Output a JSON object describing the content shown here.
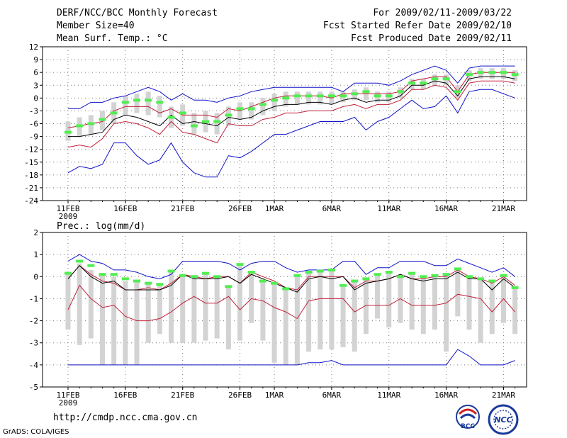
{
  "header": {
    "title": "DERF/NCC/BCC Monthly Forecast",
    "member_size": "Member Size=40",
    "variable": "Mean Surf. Temp.: °C",
    "period": "For 2009/02/11-2009/03/22",
    "started": "Fcst Started Refer Date 2009/02/10",
    "produced": "Fcst Produced Date 2009/02/11"
  },
  "footer": {
    "url": "http://cmdp.ncc.cma.gov.cn",
    "grads": "GrADS: COLA/IGES",
    "logo_left_text": "BCC",
    "logo_right_text": "NCC"
  },
  "colors": {
    "box": "#d3d3d3",
    "median": "#50ee50",
    "mean": "#000000",
    "inner_band": "#c0203a",
    "outer_band": "#1010c8",
    "grid": "#777777"
  },
  "chart_data": [
    {
      "type": "box-line",
      "title": "Mean Surf. Temp.: °C",
      "ylabel": "°C",
      "ylim": [
        -24,
        12
      ],
      "yticks": [
        12,
        9,
        6,
        3,
        0,
        -3,
        -6,
        -9,
        -12,
        -15,
        -18,
        -21,
        -24
      ],
      "xlabels": [
        {
          "day": 0,
          "label": "11FEB",
          "sub": "2009"
        },
        {
          "day": 5,
          "label": "16FEB"
        },
        {
          "day": 10,
          "label": "21FEB"
        },
        {
          "day": 15,
          "label": "26FEB"
        },
        {
          "day": 18,
          "label": "1MAR"
        },
        {
          "day": 23,
          "label": "6MAR"
        },
        {
          "day": 28,
          "label": "11MAR"
        },
        {
          "day": 33,
          "label": "16MAR"
        },
        {
          "day": 38,
          "label": "21MAR"
        }
      ],
      "series": [
        {
          "name": "ensemble max",
          "values": [
            -2.5,
            -2.5,
            -1.0,
            -1.0,
            0.0,
            0.5,
            1.5,
            2.5,
            1.5,
            -0.5,
            1.0,
            -0.5,
            -0.5,
            -1.0,
            0.0,
            0.5,
            1.5,
            2.0,
            2.5,
            2.5,
            2.5,
            2.5,
            2.5,
            2.5,
            1.5,
            3.5,
            3.5,
            3.5,
            3.0,
            4.0,
            5.5,
            6.5,
            7.5,
            6.5,
            3.5,
            7.0,
            7.5,
            7.5,
            7.5,
            7.5
          ]
        },
        {
          "name": "upper band",
          "values": [
            -7.0,
            -6.5,
            -6.0,
            -5.5,
            -3.0,
            -2.0,
            -2.0,
            -2.0,
            -3.5,
            -2.5,
            -4.0,
            -4.0,
            -4.0,
            -4.5,
            -2.5,
            -3.0,
            -2.0,
            -1.0,
            0.0,
            0.5,
            0.5,
            0.5,
            0.5,
            0.0,
            1.0,
            1.0,
            1.0,
            1.0,
            1.0,
            1.5,
            4.0,
            4.5,
            5.0,
            5.0,
            1.5,
            5.5,
            6.0,
            6.0,
            6.0,
            6.0
          ]
        },
        {
          "name": "ensemble mean",
          "values": [
            -9.0,
            -9.0,
            -8.5,
            -8.0,
            -5.0,
            -4.0,
            -4.5,
            -5.5,
            -6.5,
            -4.0,
            -6.0,
            -5.5,
            -6.0,
            -6.5,
            -4.5,
            -5.0,
            -4.5,
            -3.0,
            -2.0,
            -1.5,
            -1.5,
            -1.0,
            -1.0,
            -1.5,
            -0.5,
            0.0,
            -1.0,
            -0.5,
            -0.5,
            0.5,
            3.0,
            3.0,
            4.0,
            3.5,
            0.5,
            4.5,
            5.0,
            5.0,
            5.0,
            4.5
          ]
        },
        {
          "name": "lower band",
          "values": [
            -11.5,
            -11.0,
            -11.5,
            -9.5,
            -6.0,
            -5.5,
            -6.0,
            -7.0,
            -8.5,
            -5.5,
            -8.0,
            -8.5,
            -9.5,
            -10.5,
            -6.0,
            -6.5,
            -6.5,
            -5.0,
            -4.5,
            -3.5,
            -3.5,
            -3.0,
            -3.0,
            -3.0,
            -2.0,
            -1.5,
            -2.5,
            -1.5,
            -1.5,
            -0.5,
            2.0,
            2.0,
            3.0,
            2.5,
            -0.5,
            3.5,
            4.0,
            4.0,
            4.0,
            3.5
          ]
        },
        {
          "name": "ensemble min",
          "values": [
            -17.5,
            -16.0,
            -16.5,
            -15.5,
            -10.5,
            -10.5,
            -13.5,
            -15.5,
            -14.5,
            -10.5,
            -15.0,
            -17.5,
            -18.5,
            -18.5,
            -13.5,
            -14.0,
            -12.5,
            -10.5,
            -8.5,
            -8.5,
            -7.5,
            -6.5,
            -5.5,
            -5.5,
            -5.5,
            -4.5,
            -7.5,
            -5.5,
            -4.5,
            -2.5,
            -0.5,
            -2.5,
            -2.0,
            0.5,
            -3.5,
            1.5,
            2.0,
            2.0,
            1.0,
            0.0
          ]
        },
        {
          "name": "median",
          "values": [
            -8.0,
            -6.5,
            -6.0,
            -5.0,
            -3.5,
            -1.0,
            -0.5,
            -0.5,
            -1.0,
            -4.5,
            -3.5,
            -6.5,
            -5.5,
            -5.5,
            -4.0,
            -2.5,
            -2.5,
            -1.5,
            -0.5,
            0.0,
            0.5,
            0.5,
            0.5,
            0.5,
            0.5,
            1.0,
            1.5,
            0.5,
            0.5,
            1.5,
            3.5,
            3.5,
            4.5,
            4.5,
            1.5,
            5.5,
            6.0,
            6.0,
            6.0,
            5.5
          ]
        },
        {
          "name": "box top",
          "values": [
            -5.5,
            -4.5,
            -4.0,
            -3.0,
            -1.0,
            0.5,
            1.0,
            1.5,
            0.5,
            -2.0,
            -1.5,
            -3.5,
            -3.0,
            -3.5,
            -2.0,
            -1.0,
            -1.0,
            0.0,
            1.0,
            1.5,
            1.5,
            1.5,
            1.5,
            1.5,
            1.5,
            2.0,
            2.5,
            1.5,
            1.5,
            2.5,
            4.5,
            4.5,
            5.5,
            5.5,
            3.0,
            6.5,
            7.0,
            7.0,
            7.0,
            6.5
          ]
        },
        {
          "name": "box bottom",
          "values": [
            -10.0,
            -9.0,
            -8.5,
            -7.5,
            -6.0,
            -4.0,
            -3.5,
            -4.0,
            -4.5,
            -7.0,
            -6.5,
            -8.5,
            -8.0,
            -8.5,
            -6.5,
            -5.0,
            -5.0,
            -4.0,
            -3.0,
            -2.0,
            -1.5,
            -1.5,
            -1.5,
            -1.5,
            -1.0,
            -0.5,
            -0.5,
            -1.0,
            -1.0,
            0.0,
            2.0,
            2.0,
            3.0,
            3.0,
            0.0,
            4.0,
            4.5,
            4.5,
            4.5,
            4.0
          ]
        }
      ]
    },
    {
      "type": "box-line",
      "title": "Prec.: log(mm/d)",
      "ylabel": "log(mm/d)",
      "ylim": [
        -5,
        2
      ],
      "yticks": [
        2,
        1,
        0,
        -1,
        -2,
        -3,
        -4,
        -5
      ],
      "xlabels": [
        {
          "day": 0,
          "label": "11FEB",
          "sub": "2009"
        },
        {
          "day": 5,
          "label": "16FEB"
        },
        {
          "day": 10,
          "label": "21FEB"
        },
        {
          "day": 15,
          "label": "26FEB"
        },
        {
          "day": 18,
          "label": "1MAR"
        },
        {
          "day": 23,
          "label": "6MAR"
        },
        {
          "day": 28,
          "label": "11MAR"
        },
        {
          "day": 33,
          "label": "16MAR"
        },
        {
          "day": 38,
          "label": "21MAR"
        }
      ],
      "series": [
        {
          "name": "ensemble max",
          "values": [
            0.7,
            1.0,
            0.7,
            0.6,
            0.3,
            0.3,
            0.2,
            0.0,
            -0.1,
            0.1,
            0.7,
            0.7,
            0.7,
            0.7,
            0.6,
            0.3,
            0.6,
            0.7,
            0.7,
            0.4,
            0.2,
            0.3,
            0.3,
            0.3,
            0.7,
            0.7,
            0.1,
            0.4,
            0.4,
            0.7,
            0.7,
            0.7,
            0.5,
            0.5,
            0.8,
            0.6,
            0.4,
            0.2,
            0.4,
            0.0
          ]
        },
        {
          "name": "upper band",
          "values": [
            -0.1,
            0.5,
            0.1,
            -0.2,
            -0.3,
            -0.6,
            -0.6,
            -0.5,
            -0.6,
            -0.3,
            0.1,
            0.0,
            -0.1,
            0.0,
            0.0,
            -0.3,
            0.2,
            0.0,
            -0.2,
            -0.5,
            -0.6,
            0.0,
            0.0,
            0.0,
            0.0,
            -0.5,
            -0.2,
            -0.2,
            -0.1,
            0.1,
            -0.1,
            -0.1,
            0.0,
            0.0,
            0.3,
            0.0,
            -0.1,
            -0.3,
            0.0,
            -0.4
          ]
        },
        {
          "name": "ensemble mean",
          "values": [
            -0.1,
            0.5,
            0.0,
            -0.3,
            -0.2,
            -0.6,
            -0.6,
            -0.6,
            -0.6,
            -0.4,
            0.1,
            -0.1,
            -0.1,
            -0.1,
            0.0,
            -0.3,
            0.1,
            -0.1,
            -0.3,
            -0.5,
            -0.7,
            -0.1,
            0.0,
            -0.1,
            0.0,
            -0.6,
            -0.3,
            -0.2,
            -0.1,
            0.1,
            -0.1,
            -0.2,
            -0.1,
            -0.1,
            0.2,
            -0.1,
            -0.1,
            -0.6,
            -0.1,
            -0.5
          ]
        },
        {
          "name": "lower band",
          "values": [
            -1.5,
            -0.4,
            -1.0,
            -1.4,
            -1.3,
            -1.8,
            -2.0,
            -2.0,
            -1.9,
            -1.6,
            -1.2,
            -0.9,
            -1.2,
            -1.2,
            -0.9,
            -1.5,
            -1.0,
            -1.1,
            -1.4,
            -1.6,
            -1.9,
            -1.1,
            -1.0,
            -1.0,
            -1.0,
            -1.6,
            -1.3,
            -1.3,
            -1.3,
            -1.0,
            -1.3,
            -1.3,
            -1.3,
            -1.2,
            -0.8,
            -0.9,
            -1.0,
            -1.6,
            -1.0,
            -1.6
          ]
        },
        {
          "name": "ensemble min",
          "values": [
            -4.0,
            -4.0,
            -4.0,
            -4.0,
            -4.0,
            -4.0,
            -4.0,
            -4.0,
            -4.0,
            -4.0,
            -4.0,
            -4.0,
            -4.0,
            -4.0,
            -4.0,
            -4.0,
            -4.0,
            -4.0,
            -4.0,
            -4.0,
            -4.0,
            -3.9,
            -3.9,
            -3.8,
            -4.0,
            -4.0,
            -4.0,
            -4.0,
            -4.0,
            -4.0,
            -4.0,
            -4.0,
            -4.0,
            -4.0,
            -3.3,
            -3.6,
            -4.0,
            -4.0,
            -4.0,
            -3.8
          ]
        },
        {
          "name": "median",
          "values": [
            0.15,
            0.7,
            0.5,
            0.1,
            0.1,
            -0.1,
            -0.2,
            -0.3,
            -0.35,
            0.25,
            0.05,
            0.0,
            0.15,
            0.0,
            -0.45,
            0.55,
            0.2,
            -0.2,
            -0.3,
            -0.55,
            0.05,
            0.2,
            0.25,
            0.3,
            -0.4,
            -0.2,
            -0.1,
            0.1,
            0.2,
            0.0,
            0.15,
            0.0,
            0.05,
            0.1,
            0.35,
            0.0,
            -0.1,
            -0.2,
            0.05,
            -0.5
          ]
        },
        {
          "name": "box top",
          "values": [
            0.2,
            0.6,
            0.3,
            0.1,
            0.0,
            -0.2,
            -0.2,
            -0.3,
            -0.4,
            0.2,
            0.0,
            0.0,
            0.1,
            0.0,
            -0.4,
            0.5,
            0.2,
            -0.2,
            -0.3,
            -0.5,
            0.0,
            0.2,
            0.2,
            0.3,
            -0.4,
            -0.2,
            -0.1,
            0.1,
            0.2,
            0.0,
            0.1,
            0.0,
            0.0,
            0.1,
            0.3,
            0.0,
            -0.1,
            -0.2,
            0.0,
            -0.5
          ]
        },
        {
          "name": "box bottom",
          "values": [
            -2.4,
            -3.1,
            -2.8,
            -4.0,
            -4.0,
            -4.0,
            -4.0,
            -3.0,
            -2.6,
            -3.0,
            -3.0,
            -3.0,
            -2.9,
            -2.8,
            -3.3,
            -2.9,
            -2.1,
            -2.9,
            -3.9,
            -4.0,
            -4.0,
            -3.4,
            -3.3,
            -3.3,
            -3.2,
            -3.4,
            -2.6,
            -1.9,
            -2.3,
            -2.1,
            -2.4,
            -2.6,
            -2.4,
            -3.4,
            -1.8,
            -2.4,
            -3.0,
            -2.6,
            -2.1,
            -2.6
          ]
        }
      ]
    }
  ]
}
